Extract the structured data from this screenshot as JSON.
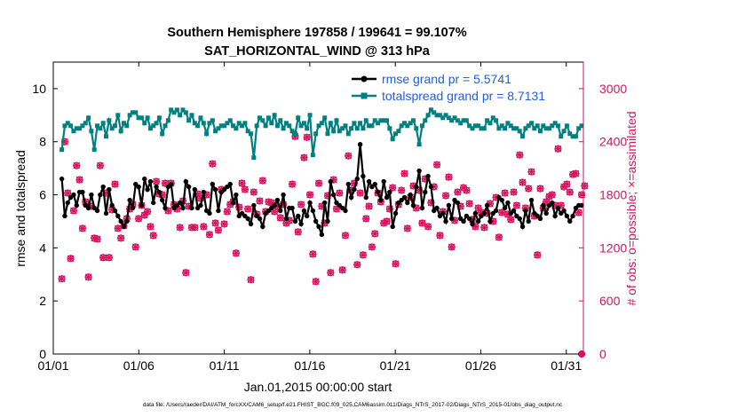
{
  "chart_data": {
    "type": "line",
    "title_line1": "Southern Hemisphere 197858 / 199641 = 99.107%",
    "title_line2": "SAT_HORIZONTAL_WIND @ 313 hPa",
    "xlabel": "Jan.01,2015 00:00:00 start",
    "ylabel_left": "rmse and totalspread",
    "ylabel_right": "# of obs: o=possible; ×=assimilated",
    "footnote": "data file: /Users/raeder/DAI/ATM_forcXX/CAM6_setup/f.e21.FHIST_BGC.f09_025.CAM6assim.011/Diags_NTrS_2017-02/Diags_NTrS_2015-01/obs_diag_output.nc",
    "x_ticks": [
      1,
      6,
      11,
      16,
      21,
      26,
      31
    ],
    "x_tick_labels": [
      "01/01",
      "01/06",
      "01/11",
      "01/16",
      "01/21",
      "01/26",
      "01/31"
    ],
    "xlim": [
      1,
      32
    ],
    "ylim_left": [
      0,
      11
    ],
    "y_ticks_left": [
      0,
      2,
      4,
      6,
      8,
      10
    ],
    "ylim_right": [
      0,
      3300
    ],
    "y_ticks_right": [
      0,
      600,
      1200,
      1800,
      2400,
      3000
    ],
    "legend_position": "top-right",
    "colors": {
      "rmse": "#000000",
      "totalspread": "#008080",
      "obs": "#d6145f",
      "legend_text": "#1f5fe0",
      "right_axis": "#d6145f"
    },
    "series": [
      {
        "name": "rmse grand pr = 5.5741",
        "key": "rmse",
        "values": [
          6.6,
          5.2,
          5.7,
          5.9,
          6.0,
          5.6,
          6.1,
          6.1,
          5.6,
          5.5,
          6.0,
          5.5,
          5.4,
          6.0,
          6.3,
          5.3,
          6.2,
          5.6,
          5.4,
          5.2,
          5.0,
          4.8,
          5.0,
          5.8,
          5.5,
          6.4,
          6.3,
          5.6,
          6.6,
          6.2,
          6.5,
          5.7,
          6.3,
          6.1,
          5.8,
          5.5,
          6.3,
          6.4,
          5.5,
          5.6,
          5.7,
          5.5,
          6.5,
          6.3,
          5.5,
          6.2,
          5.5,
          5.6,
          6.1,
          5.4,
          5.3,
          6.4,
          6.2,
          5.4,
          6.1,
          6.2,
          6.3,
          6.4,
          5.7,
          6.0,
          5.2,
          5.3,
          5.2,
          5.1,
          4.9,
          5.6,
          5.2,
          5.1,
          4.8,
          5.3,
          5.4,
          5.5,
          5.6,
          5.8,
          5.4,
          6.0,
          5.1,
          5.5,
          5.5,
          5.0,
          5.2,
          4.9,
          5.4,
          5.2,
          5.7,
          5.4,
          5.0,
          4.8,
          4.5,
          5.7,
          5.0,
          6.5,
          6.0,
          5.7,
          5.6,
          5.5,
          5.4,
          6.4,
          5.9,
          6.2,
          6.6,
          7.9,
          6.7,
          5.9,
          6.5,
          6.3,
          6.4,
          6.1,
          5.8,
          6.5,
          5.9,
          6.1,
          4.8,
          5.3,
          5.7,
          5.8,
          5.9,
          5.7,
          6.0,
          5.6,
          6.3,
          6.9,
          5.5,
          6.1,
          6.7,
          6.3,
          5.4,
          5.5,
          5.2,
          5.3,
          5.0,
          5.6,
          5.1,
          5.8,
          5.7,
          5.1,
          5.0,
          5.2,
          5.1,
          4.9,
          5.3,
          5.0,
          5.2,
          5.3,
          5.6,
          5.0,
          5.3,
          5.4,
          5.9,
          5.8,
          5.5,
          5.7,
          5.3,
          5.4,
          5.2,
          5.1,
          4.8,
          5.4,
          5.0,
          5.8,
          5.3,
          5.2,
          5.1,
          5.6,
          5.3,
          5.6,
          5.7,
          5.2,
          5.5,
          5.3,
          5.4,
          5.2,
          5.0,
          5.2,
          5.5,
          5.6,
          5.6
        ]
      },
      {
        "name": "totalspread grand pr = 8.7131",
        "key": "totalspread",
        "values": [
          7.7,
          8.6,
          8.7,
          8.6,
          8.4,
          8.5,
          8.5,
          8.6,
          8.7,
          8.9,
          8.4,
          7.7,
          8.6,
          8.5,
          8.7,
          8.2,
          8.8,
          8.5,
          8.6,
          9.0,
          8.4,
          8.7,
          8.6,
          9.0,
          9.1,
          9.1,
          8.9,
          8.9,
          8.7,
          8.9,
          8.5,
          8.6,
          8.7,
          8.9,
          8.3,
          8.6,
          8.8,
          9.2,
          9.1,
          9.2,
          9.0,
          9.2,
          9.1,
          8.8,
          9.0,
          8.7,
          8.6,
          8.9,
          8.7,
          8.3,
          8.7,
          8.8,
          8.4,
          8.5,
          8.6,
          8.6,
          8.7,
          8.8,
          8.6,
          8.5,
          8.7,
          8.6,
          8.7,
          8.4,
          8.3,
          7.4,
          8.6,
          8.9,
          8.8,
          8.6,
          8.9,
          8.7,
          9.0,
          8.6,
          8.8,
          8.5,
          8.7,
          8.6,
          8.4,
          8.3,
          8.9,
          8.6,
          8.7,
          8.5,
          9.0,
          7.5,
          8.3,
          8.6,
          8.7,
          8.9,
          8.3,
          8.7,
          8.4,
          8.8,
          8.4,
          8.5,
          8.6,
          8.3,
          8.5,
          8.7,
          8.5,
          8.7,
          8.5,
          8.8,
          8.6,
          8.6,
          8.8,
          8.7,
          8.8,
          8.8,
          8.8,
          8.5,
          8.1,
          8.3,
          8.4,
          8.6,
          8.7,
          8.6,
          8.7,
          8.8,
          8.5,
          7.9,
          8.6,
          8.8,
          9.0,
          9.2,
          9.1,
          9.0,
          9.0,
          8.9,
          9.0,
          8.9,
          8.8,
          8.9,
          8.8,
          8.7,
          8.8,
          8.8,
          8.6,
          8.5,
          8.6,
          8.6,
          8.5,
          8.5,
          8.8,
          8.7,
          8.9,
          8.8,
          8.5,
          8.6,
          8.5,
          8.7,
          8.6,
          8.5,
          8.5,
          8.4,
          8.2,
          8.5,
          8.6,
          8.7,
          8.5,
          8.6,
          8.4,
          8.6,
          8.5,
          8.5,
          8.6,
          8.7,
          8.6,
          8.2,
          8.4,
          8.6,
          8.3,
          8.2,
          8.2,
          8.5,
          8.6
        ]
      }
    ],
    "obs_series": {
      "name": "# of obs (possible / assimilated)",
      "values": [
        850,
        2400,
        1820,
        1080,
        1620,
        2130,
        1970,
        1420,
        1720,
        870,
        1670,
        1310,
        1300,
        2130,
        1090,
        1820,
        1090,
        1630,
        1920,
        1420,
        1310,
        1450,
        1530,
        1640,
        1690,
        1210,
        1530,
        1680,
        1570,
        1610,
        1440,
        1340,
        1950,
        1810,
        1800,
        1930,
        1620,
        1930,
        1690,
        1640,
        1430,
        1730,
        920,
        1670,
        1430,
        1430,
        1810,
        1760,
        1440,
        1800,
        1350,
        2150,
        1480,
        1400,
        1860,
        1470,
        1610,
        1690,
        1720,
        1140,
        1660,
        1930,
        1860,
        1640,
        840,
        1830,
        1580,
        1730,
        1960,
        1610,
        1720,
        1710,
        1610,
        1670,
        1540,
        1690,
        1480,
        1510,
        1920,
        2460,
        1380,
        1690,
        2220,
        2450,
        1800,
        1130,
        820,
        1930,
        1670,
        1480,
        1790,
        920,
        1970,
        1640,
        1820,
        950,
        1340,
        2240,
        1850,
        1930,
        1010,
        1820,
        1120,
        1530,
        1670,
        1210,
        1360,
        1820,
        1720,
        1480,
        1500,
        1640,
        1880,
        1020,
        1690,
        1850,
        2040,
        1420,
        1770,
        1900,
        1650,
        1850,
        1480,
        1980,
        1440,
        1710,
        1890,
        2140,
        1340,
        1610,
        1790,
        2000,
        1210,
        1510,
        1830,
        1670,
        1880,
        1850,
        1700,
        1520,
        1440,
        1650,
        1600,
        1430,
        1590,
        1700,
        1500,
        1770,
        1320,
        1600,
        1820,
        1580,
        1520,
        1830,
        1680,
        2250,
        1940,
        1650,
        1870,
        2060,
        1560,
        1120,
        1870,
        1650,
        1720,
        1780,
        1800,
        1680,
        2320,
        1680,
        1890,
        1920,
        1830,
        2030,
        2040,
        1600,
        1800,
        1900
      ]
    }
  }
}
